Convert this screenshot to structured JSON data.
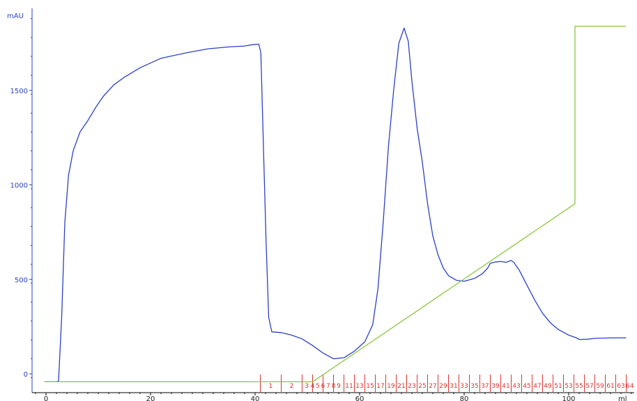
{
  "chart_data": {
    "type": "line",
    "ylabel": "mAU",
    "xlabel": "ml",
    "xlim": [
      -4,
      112
    ],
    "ylim": [
      -30,
      1910
    ],
    "xticks": [
      0,
      20,
      40,
      60,
      80,
      100
    ],
    "yticks": [
      0,
      500,
      1000,
      1500
    ],
    "grid": false,
    "colors": {
      "uv": "#2a3fc8",
      "gradient": "#8cc63f",
      "fractions": "#e03030",
      "axis_y": "#2a3fc8",
      "axis_x": "#000000"
    },
    "series": [
      {
        "key": "uv",
        "values": [
          [
            -0.3,
            -42
          ],
          [
            2.0,
            -42
          ],
          [
            2.4,
            -38
          ],
          [
            3.0,
            300
          ],
          [
            3.6,
            800
          ],
          [
            4.3,
            1050
          ],
          [
            5.2,
            1180
          ],
          [
            6.5,
            1280
          ],
          [
            8.0,
            1340
          ],
          [
            9.5,
            1410
          ],
          [
            11.0,
            1470
          ],
          [
            13.0,
            1530
          ],
          [
            15.0,
            1570
          ],
          [
            18.0,
            1620
          ],
          [
            22.0,
            1670
          ],
          [
            27.0,
            1700
          ],
          [
            31.0,
            1720
          ],
          [
            35.0,
            1730
          ],
          [
            38.0,
            1735
          ],
          [
            39.5,
            1742
          ],
          [
            40.7,
            1745
          ],
          [
            41.1,
            1700
          ],
          [
            41.6,
            1200
          ],
          [
            42.1,
            700
          ],
          [
            42.6,
            300
          ],
          [
            43.2,
            222
          ],
          [
            45.0,
            218
          ],
          [
            47.0,
            205
          ],
          [
            49.0,
            185
          ],
          [
            51.0,
            150
          ],
          [
            53.0,
            110
          ],
          [
            55.0,
            80
          ],
          [
            57.0,
            85
          ],
          [
            59.0,
            120
          ],
          [
            61.0,
            170
          ],
          [
            62.5,
            260
          ],
          [
            63.5,
            450
          ],
          [
            64.5,
            800
          ],
          [
            65.5,
            1200
          ],
          [
            66.5,
            1500
          ],
          [
            67.5,
            1750
          ],
          [
            68.5,
            1830
          ],
          [
            69.3,
            1760
          ],
          [
            70.0,
            1550
          ],
          [
            71.0,
            1300
          ],
          [
            72.0,
            1120
          ],
          [
            73.0,
            900
          ],
          [
            74.0,
            730
          ],
          [
            75.0,
            630
          ],
          [
            76.0,
            560
          ],
          [
            77.0,
            520
          ],
          [
            78.5,
            495
          ],
          [
            80.0,
            490
          ],
          [
            82.0,
            505
          ],
          [
            83.5,
            530
          ],
          [
            84.5,
            560
          ],
          [
            85.0,
            585
          ],
          [
            86.0,
            592
          ],
          [
            87.0,
            595
          ],
          [
            88.0,
            590
          ],
          [
            88.5,
            595
          ],
          [
            89.0,
            600
          ],
          [
            89.5,
            590
          ],
          [
            90.5,
            550
          ],
          [
            92.0,
            470
          ],
          [
            93.5,
            390
          ],
          [
            95.0,
            320
          ],
          [
            96.5,
            270
          ],
          [
            98.0,
            235
          ],
          [
            100.0,
            205
          ],
          [
            101.5,
            190
          ],
          [
            102.0,
            182
          ],
          [
            103.5,
            183
          ],
          [
            105.0,
            188
          ],
          [
            108.0,
            190
          ],
          [
            111.0,
            190
          ]
        ]
      },
      {
        "key": "gradient",
        "values": [
          [
            -0.3,
            -42
          ],
          [
            51.0,
            -42
          ],
          [
            101.2,
            900
          ],
          [
            101.2,
            1840
          ],
          [
            111.0,
            1840
          ]
        ]
      }
    ],
    "fractions": {
      "marks": [
        41.0,
        45.0,
        49.0,
        51.0,
        53.0,
        55.0,
        57.0,
        59.0,
        61.0,
        63.0,
        65.0,
        67.0,
        69.0,
        71.0,
        73.0,
        75.0,
        77.0,
        79.0,
        81.0,
        83.0,
        85.0,
        87.0,
        89.0,
        91.0,
        93.0,
        95.0,
        97.0,
        99.0,
        101.0,
        103.0,
        105.0,
        107.0,
        109.0,
        111.0
      ],
      "labels": [
        {
          "x": 43.0,
          "text": "1"
        },
        {
          "x": 47.0,
          "text": "2"
        },
        {
          "x": 49.9,
          "text": "3"
        },
        {
          "x": 51.0,
          "text": "4"
        },
        {
          "x": 52.0,
          "text": "5"
        },
        {
          "x": 53.0,
          "text": "6"
        },
        {
          "x": 54.0,
          "text": "7"
        },
        {
          "x": 55.0,
          "text": "8"
        },
        {
          "x": 56.0,
          "text": "9"
        },
        {
          "x": 58.0,
          "text": "11"
        },
        {
          "x": 60.0,
          "text": "13"
        },
        {
          "x": 62.0,
          "text": "15"
        },
        {
          "x": 64.0,
          "text": "17"
        },
        {
          "x": 66.0,
          "text": "19"
        },
        {
          "x": 68.0,
          "text": "21"
        },
        {
          "x": 70.0,
          "text": "23"
        },
        {
          "x": 72.0,
          "text": "25"
        },
        {
          "x": 74.0,
          "text": "27"
        },
        {
          "x": 76.0,
          "text": "29"
        },
        {
          "x": 78.0,
          "text": "31"
        },
        {
          "x": 80.0,
          "text": "33"
        },
        {
          "x": 82.0,
          "text": "35"
        },
        {
          "x": 84.0,
          "text": "37"
        },
        {
          "x": 86.0,
          "text": "39"
        },
        {
          "x": 88.0,
          "text": "41"
        },
        {
          "x": 90.0,
          "text": "43"
        },
        {
          "x": 92.0,
          "text": "45"
        },
        {
          "x": 94.0,
          "text": "47"
        },
        {
          "x": 96.0,
          "text": "49"
        },
        {
          "x": 98.0,
          "text": "51"
        },
        {
          "x": 100.0,
          "text": "53"
        },
        {
          "x": 102.0,
          "text": "55"
        },
        {
          "x": 104.0,
          "text": "57"
        },
        {
          "x": 106.0,
          "text": "59"
        },
        {
          "x": 108.0,
          "text": "61"
        },
        {
          "x": 110.0,
          "text": "63"
        },
        {
          "x": 111.7,
          "text": "64"
        }
      ]
    }
  }
}
